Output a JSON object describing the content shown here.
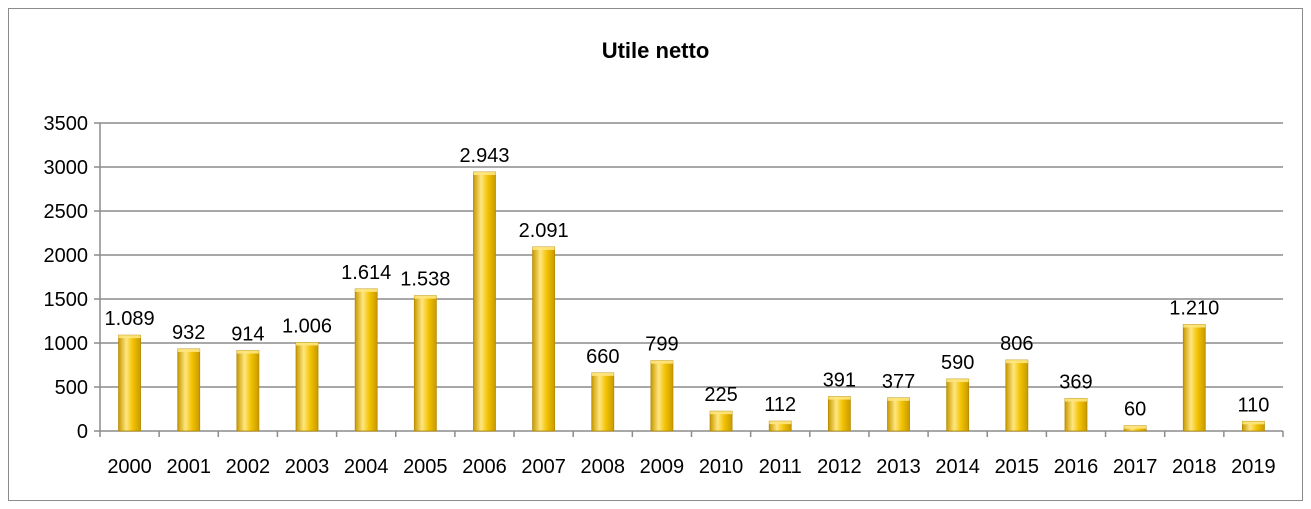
{
  "chart_data": {
    "type": "bar",
    "title": "Utile netto",
    "xlabel": "",
    "ylabel": "",
    "ylim": [
      0,
      3500
    ],
    "yticks": [
      0,
      500,
      1000,
      1500,
      2000,
      2500,
      3000,
      3500
    ],
    "grid": true,
    "legend": "none",
    "bar_color": "#f2c200",
    "bar_highlight": "#ffe680",
    "bar_shadow": "#c89a00",
    "categories": [
      "2000",
      "2001",
      "2002",
      "2003",
      "2004",
      "2005",
      "2006",
      "2007",
      "2008",
      "2009",
      "2010",
      "2011",
      "2012",
      "2013",
      "2014",
      "2015",
      "2016",
      "2017",
      "2018",
      "2019"
    ],
    "values": [
      1089,
      932,
      914,
      1006,
      1614,
      1538,
      2943,
      2091,
      660,
      799,
      225,
      112,
      391,
      377,
      590,
      806,
      369,
      60,
      1210,
      110
    ],
    "data_labels": [
      "1.089",
      "932",
      "914",
      "1.006",
      "1.614",
      "1.538",
      "2.943",
      "2.091",
      "660",
      "799",
      "225",
      "112",
      "391",
      "377",
      "590",
      "806",
      "369",
      "60",
      "1.210",
      "110"
    ]
  }
}
